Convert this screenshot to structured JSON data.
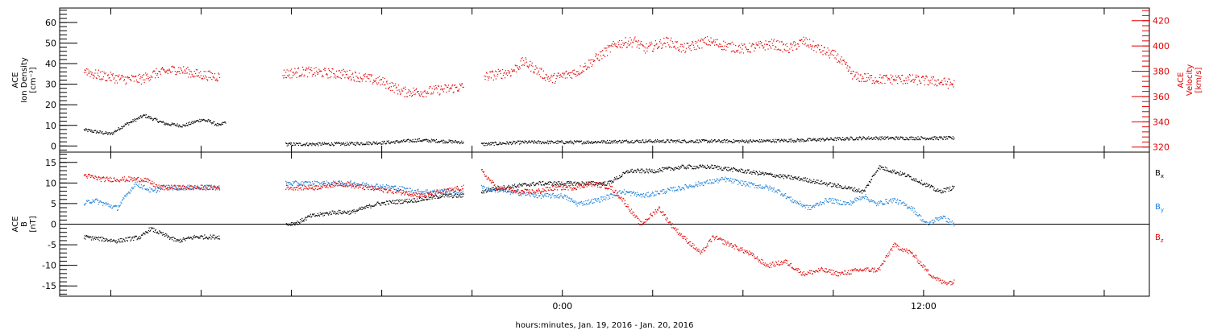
{
  "chart_data": [
    {
      "type": "scatter",
      "panel": "top",
      "left_axis": {
        "label_lines": [
          "ACE",
          "Ion Density",
          "[cm⁻³]"
        ],
        "ylim": [
          -3,
          67
        ],
        "ticks": [
          0,
          10,
          20,
          30,
          40,
          50,
          60
        ],
        "minor_step": 2,
        "color": "#000000"
      },
      "right_axis": {
        "label_lines": [
          "ACE",
          "Velocity",
          "[km/s]"
        ],
        "ylim": [
          316,
          430
        ],
        "ticks": [
          320,
          340,
          360,
          380,
          400,
          420
        ],
        "minor_step": 4,
        "color": "#e00000"
      },
      "series": [
        {
          "axis": "left",
          "color": "#000000",
          "noise": 0.8,
          "segments": [
            {
              "x": [
                -15.9,
                -15.0,
                -14.6,
                -13.9,
                -13.2,
                -12.6,
                -12.0,
                -11.7,
                -11.4,
                -11.2
              ],
              "y": [
                8,
                6,
                10,
                15,
                11,
                10,
                13,
                12,
                10,
                12
              ]
            },
            {
              "x": [
                -9.2,
                -7.2,
                -5.7,
                -4.8,
                -4.0,
                -3.3
              ],
              "y": [
                1,
                1.2,
                2,
                3,
                2.5,
                2
              ]
            },
            {
              "x": [
                -2.7,
                -1.3,
                0.5,
                2.4,
                4.0,
                6.3,
                8.0,
                9.9,
                12.0,
                13.0
              ],
              "y": [
                1,
                2,
                2,
                2.5,
                2.5,
                2.5,
                3,
                4,
                4,
                4
              ]
            }
          ]
        },
        {
          "axis": "right",
          "color": "#e00000",
          "noise": 4,
          "segments": [
            {
              "x": [
                -15.9,
                -15.6,
                -14.6,
                -14.0,
                -13.6,
                -12.8,
                -12.2,
                -11.4
              ],
              "y": [
                382,
                378,
                374,
                374,
                378,
                382,
                378,
                376
              ]
            },
            {
              "x": [
                -9.3,
                -8.6,
                -7.2,
                -6.0,
                -5.3,
                -4.6,
                -3.3
              ],
              "y": [
                378,
                380,
                378,
                372,
                364,
                364,
                368
              ]
            },
            {
              "x": [
                -2.6,
                -1.7,
                -1.3,
                -0.4,
                0.5,
                1.2,
                1.8,
                2.4,
                2.7,
                3.0,
                3.5,
                4.0,
                4.8,
                5.5,
                6.0,
                6.5,
                7.0,
                7.5,
                8.0,
                8.5,
                9.1,
                9.7,
                10.4,
                11.5,
                12.5,
                13.0
              ],
              "y": [
                376,
                380,
                388,
                374,
                380,
                392,
                402,
                404,
                398,
                400,
                404,
                398,
                404,
                400,
                398,
                400,
                402,
                398,
                404,
                398,
                392,
                376,
                374,
                374,
                372,
                370
              ]
            }
          ]
        }
      ]
    },
    {
      "type": "scatter",
      "panel": "bottom",
      "left_axis": {
        "label_lines": [
          "ACE",
          "B",
          "[nT]"
        ],
        "ylim": [
          -17.5,
          17.5
        ],
        "ticks": [
          -15,
          -10,
          -5,
          0,
          5,
          10,
          15
        ],
        "minor_step": 1,
        "color": "#000000"
      },
      "zero_line": true,
      "series": [
        {
          "name": "B",
          "subscript": "x",
          "color": "#000000",
          "noise": 0.5,
          "segments": [
            {
              "x": [
                -15.9,
                -14.8,
                -14.0,
                -13.7,
                -12.8,
                -12.2,
                -11.4
              ],
              "y": [
                -3,
                -4,
                -3,
                -1,
                -4,
                -3,
                -3
              ]
            },
            {
              "x": [
                -9.2,
                -8.8,
                -8.4,
                -7.6,
                -7.0,
                -6.2,
                -5.6,
                -4.8,
                -4.0,
                -3.3
              ],
              "y": [
                0,
                0.5,
                2,
                3,
                3,
                5,
                5.5,
                6,
                7,
                7
              ]
            },
            {
              "x": [
                -2.7,
                -2.0,
                -0.8,
                0.5,
                1.5,
                2.2,
                3.0,
                4.0,
                5.0,
                6.0,
                7.0,
                8.0,
                8.7,
                9.4,
                10.0,
                10.5,
                11.4,
                12.0,
                12.5,
                13.0
              ],
              "y": [
                8,
                9,
                10,
                10,
                10,
                13,
                13,
                14,
                14,
                13,
                12,
                11,
                10,
                9,
                8,
                14,
                12,
                10,
                8,
                9
              ]
            }
          ]
        },
        {
          "name": "B",
          "subscript": "y",
          "color": "#1a7fd9",
          "noise": 0.6,
          "segments": [
            {
              "x": [
                -15.9,
                -15.6,
                -14.8,
                -14.2,
                -13.6,
                -13.3,
                -12.4,
                -11.4
              ],
              "y": [
                5,
                6,
                4,
                10,
                8,
                9,
                9,
                9
              ]
            },
            {
              "x": [
                -9.2,
                -8.0,
                -7.0,
                -5.6,
                -4.8,
                -3.3
              ],
              "y": [
                10,
                10,
                10,
                9,
                8,
                8
              ]
            },
            {
              "x": [
                -2.7,
                -1.8,
                -0.8,
                0.0,
                0.5,
                1.2,
                2.0,
                2.7,
                3.3,
                4.0,
                4.6,
                5.4,
                6.0,
                6.8,
                7.2,
                7.6,
                8.2,
                8.8,
                9.5,
                10.0,
                10.4,
                11.0,
                11.6,
                12.1,
                12.6,
                13.0
              ],
              "y": [
                9,
                8,
                7,
                7,
                5,
                6,
                8,
                7,
                8,
                9,
                10,
                11,
                10,
                9,
                8,
                6,
                4,
                6,
                5,
                7,
                5,
                6,
                4,
                0,
                2,
                0
              ]
            }
          ]
        },
        {
          "name": "B",
          "subscript": "z",
          "color": "#e00000",
          "noise": 0.6,
          "segments": [
            {
              "x": [
                -15.9,
                -15.3,
                -14.6,
                -13.9,
                -13.4,
                -12.8,
                -12.0,
                -11.4
              ],
              "y": [
                12,
                11,
                11,
                11,
                9,
                9,
                9,
                9
              ]
            },
            {
              "x": [
                -9.2,
                -8.2,
                -7.4,
                -6.6,
                -5.5,
                -4.6,
                -4.0,
                -3.3
              ],
              "y": [
                9,
                9,
                10,
                9,
                8,
                7,
                8,
                9
              ]
            },
            {
              "x": [
                -2.7,
                -2.2,
                -1.6,
                -0.9,
                -0.2,
                0.4,
                1.0,
                1.6,
                2.0,
                2.6,
                3.2,
                3.6,
                4.0,
                4.6,
                5.0,
                5.6,
                6.2,
                6.8,
                7.4,
                8.0,
                8.6,
                9.2,
                9.9,
                10.5,
                11.0,
                11.6,
                12.2,
                12.6,
                13.0
              ],
              "y": [
                13,
                9,
                8,
                8,
                9,
                9,
                10,
                9,
                6,
                0,
                4,
                0,
                -3,
                -7,
                -3,
                -5,
                -7,
                -10,
                -9,
                -12,
                -11,
                -12,
                -11,
                -11,
                -5,
                -7,
                -12,
                -14,
                -14
              ]
            }
          ]
        }
      ]
    }
  ],
  "x_axis": {
    "xlim": [
      -16.7,
      19.5
    ],
    "tick_hours": [
      -15,
      -12,
      -9,
      -6,
      -3,
      0,
      3,
      6,
      9,
      12,
      15,
      18
    ],
    "labeled_ticks": [
      {
        "hour": 0,
        "label": "0:00"
      },
      {
        "hour": 12,
        "label": "12:00"
      }
    ],
    "title": "hours:minutes, Jan. 19, 2016 - Jan. 20, 2016"
  }
}
